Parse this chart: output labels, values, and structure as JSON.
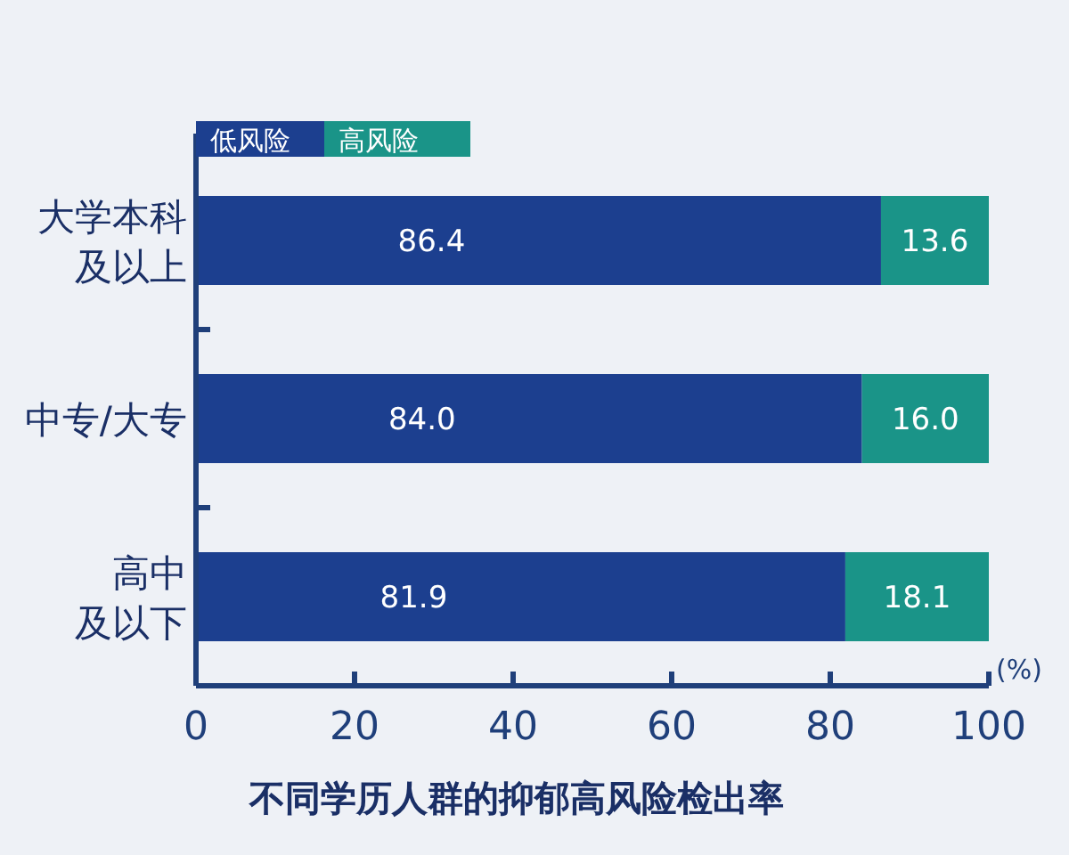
{
  "chart_data": {
    "type": "bar",
    "orientation": "horizontal",
    "stacked": true,
    "title": "不同学历人群的抑郁高风险检出率",
    "xlabel": "(%)",
    "categories": [
      "大学本科及以上",
      "中专/大专",
      "高中及以下"
    ],
    "series": [
      {
        "name": "低风险",
        "color": "#1c3f8f",
        "values": [
          86.4,
          84.0,
          81.9
        ],
        "value_labels": [
          "86.4",
          "84.0",
          "81.9"
        ]
      },
      {
        "name": "高风险",
        "color": "#1a9488",
        "values": [
          13.6,
          16.0,
          18.1
        ],
        "value_labels": [
          "13.6",
          "16.0",
          "18.1"
        ]
      }
    ],
    "xlim": [
      0,
      100
    ],
    "xticks": [
      0,
      20,
      40,
      60,
      80,
      100
    ],
    "legend": "top left"
  }
}
